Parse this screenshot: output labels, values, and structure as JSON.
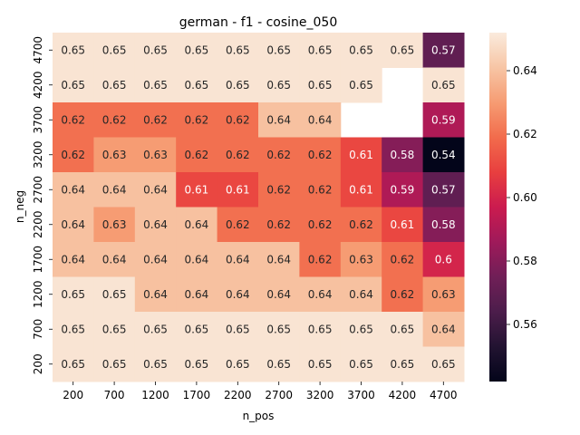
{
  "chart_data": {
    "type": "heatmap",
    "title": "german - f1 - cosine_050",
    "xlabel": "n_pos",
    "ylabel": "n_neg",
    "x_categories": [
      "200",
      "700",
      "1200",
      "1700",
      "2200",
      "2700",
      "3200",
      "3700",
      "4200",
      "4700"
    ],
    "y_categories": [
      "4700",
      "4200",
      "3700",
      "3200",
      "2700",
      "2200",
      "1700",
      "1200",
      "700",
      "200"
    ],
    "values": [
      [
        0.65,
        0.65,
        0.65,
        0.65,
        0.65,
        0.65,
        0.65,
        0.65,
        0.65,
        0.57
      ],
      [
        0.65,
        0.65,
        0.65,
        0.65,
        0.65,
        0.65,
        0.65,
        0.65,
        null,
        0.65
      ],
      [
        0.62,
        0.62,
        0.62,
        0.62,
        0.62,
        0.64,
        0.64,
        null,
        null,
        0.59
      ],
      [
        0.62,
        0.63,
        0.63,
        0.62,
        0.62,
        0.62,
        0.62,
        0.61,
        0.58,
        0.54
      ],
      [
        0.64,
        0.64,
        0.64,
        0.61,
        0.61,
        0.62,
        0.62,
        0.61,
        0.59,
        0.57
      ],
      [
        0.64,
        0.63,
        0.64,
        0.64,
        0.62,
        0.62,
        0.62,
        0.62,
        0.61,
        0.58
      ],
      [
        0.64,
        0.64,
        0.64,
        0.64,
        0.64,
        0.64,
        0.62,
        0.63,
        0.62,
        0.6
      ],
      [
        0.65,
        0.65,
        0.64,
        0.64,
        0.64,
        0.64,
        0.64,
        0.64,
        0.62,
        0.63
      ],
      [
        0.65,
        0.65,
        0.65,
        0.65,
        0.65,
        0.65,
        0.65,
        0.65,
        0.65,
        0.64
      ],
      [
        0.65,
        0.65,
        0.65,
        0.65,
        0.65,
        0.65,
        0.65,
        0.65,
        0.65,
        0.65
      ]
    ],
    "color_range": [
      0.542,
      0.652
    ],
    "colorbar_ticks": [
      "0.56",
      "0.58",
      "0.60",
      "0.62",
      "0.64"
    ],
    "colormap": "rocket"
  }
}
